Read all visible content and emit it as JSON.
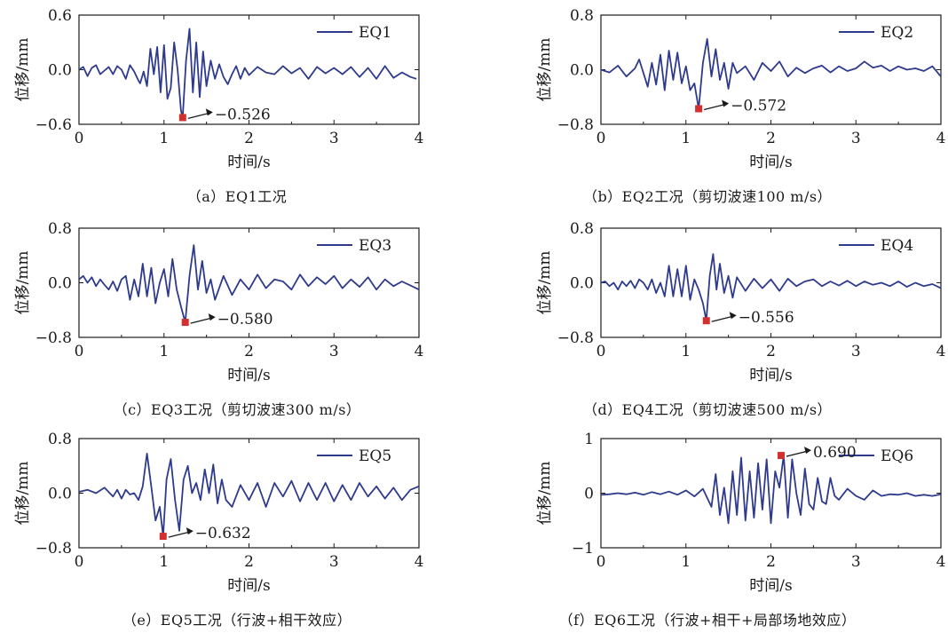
{
  "chart_data": [
    {
      "type": "line",
      "caption": "（a）EQ1工况",
      "series_name": "EQ1",
      "xlabel": "时间/s",
      "ylabel": "位移/mm",
      "xlim": [
        0,
        4
      ],
      "ylim": [
        -0.6,
        0.6
      ],
      "x_ticks": [
        "0",
        "1",
        "2",
        "3",
        "4"
      ],
      "y_ticks": [
        "0.6",
        "0.0",
        "−0.6"
      ],
      "y_tick_values": [
        0.6,
        0.0,
        -0.6
      ],
      "peak": {
        "x": 1.22,
        "y": -0.526,
        "label": "−0.526"
      },
      "x": [
        0.0,
        0.05,
        0.1,
        0.15,
        0.2,
        0.25,
        0.3,
        0.35,
        0.4,
        0.45,
        0.5,
        0.55,
        0.6,
        0.65,
        0.7,
        0.72,
        0.76,
        0.8,
        0.84,
        0.88,
        0.92,
        0.96,
        1.0,
        1.04,
        1.08,
        1.12,
        1.16,
        1.2,
        1.22,
        1.26,
        1.3,
        1.34,
        1.38,
        1.42,
        1.46,
        1.5,
        1.55,
        1.6,
        1.65,
        1.7,
        1.75,
        1.8,
        1.85,
        1.9,
        1.95,
        2.0,
        2.1,
        2.2,
        2.3,
        2.4,
        2.5,
        2.6,
        2.7,
        2.8,
        2.9,
        3.0,
        3.1,
        3.2,
        3.3,
        3.4,
        3.5,
        3.6,
        3.7,
        3.8,
        3.9,
        3.97
      ],
      "y": [
        0.0,
        0.03,
        -0.07,
        0.02,
        0.05,
        -0.05,
        -0.01,
        0.03,
        -0.05,
        0.04,
        0.0,
        -0.1,
        0.05,
        -0.02,
        -0.12,
        -0.15,
        -0.02,
        -0.18,
        0.23,
        -0.05,
        0.25,
        -0.25,
        0.27,
        -0.32,
        -0.2,
        0.3,
        0.0,
        -0.45,
        -0.526,
        0.1,
        0.45,
        -0.25,
        0.3,
        -0.3,
        0.2,
        -0.18,
        0.1,
        -0.1,
        0.06,
        -0.08,
        -0.16,
        -0.05,
        0.04,
        -0.1,
        0.02,
        -0.06,
        0.03,
        -0.03,
        -0.05,
        0.04,
        -0.04,
        0.02,
        -0.1,
        0.03,
        -0.04,
        0.02,
        -0.05,
        0.03,
        -0.08,
        0.02,
        -0.1,
        0.04,
        -0.09,
        -0.03,
        -0.08,
        -0.1
      ]
    },
    {
      "type": "line",
      "caption": "（b）EQ2工况（剪切波速100 m/s）",
      "series_name": "EQ2",
      "xlabel": "时间/s",
      "ylabel": "位移/mm",
      "xlim": [
        0,
        4
      ],
      "ylim": [
        -0.8,
        0.8
      ],
      "x_ticks": [
        "0",
        "1",
        "2",
        "3",
        "4"
      ],
      "y_ticks": [
        "0.8",
        "0.0",
        "−0.8"
      ],
      "y_tick_values": [
        0.8,
        0.0,
        -0.8
      ],
      "peak": {
        "x": 1.15,
        "y": -0.572,
        "label": "−0.572"
      },
      "x": [
        0.0,
        0.1,
        0.2,
        0.3,
        0.4,
        0.45,
        0.5,
        0.55,
        0.6,
        0.65,
        0.7,
        0.75,
        0.8,
        0.85,
        0.9,
        0.95,
        1.0,
        1.05,
        1.1,
        1.15,
        1.2,
        1.25,
        1.3,
        1.35,
        1.4,
        1.45,
        1.5,
        1.55,
        1.6,
        1.7,
        1.8,
        1.9,
        2.0,
        2.1,
        2.2,
        2.3,
        2.4,
        2.5,
        2.6,
        2.7,
        2.8,
        2.9,
        3.0,
        3.1,
        3.2,
        3.3,
        3.4,
        3.5,
        3.6,
        3.7,
        3.8,
        3.9,
        4.0
      ],
      "y": [
        0.0,
        -0.04,
        0.06,
        -0.1,
        0.02,
        0.15,
        -0.05,
        -0.25,
        0.1,
        -0.22,
        0.22,
        -0.3,
        0.28,
        -0.15,
        0.25,
        -0.2,
        0.05,
        -0.3,
        -0.2,
        -0.572,
        0.1,
        0.45,
        -0.1,
        0.3,
        -0.15,
        0.1,
        -0.28,
        0.1,
        -0.05,
        0.05,
        -0.15,
        0.1,
        -0.02,
        0.12,
        -0.1,
        0.03,
        -0.05,
        0.02,
        0.06,
        -0.04,
        0.05,
        -0.02,
        0.02,
        0.12,
        0.03,
        0.06,
        -0.02,
        0.05,
        0.0,
        0.02,
        -0.02,
        0.05,
        -0.1
      ]
    },
    {
      "type": "line",
      "caption": "（c）EQ3工况（剪切波速300 m/s）",
      "series_name": "EQ3",
      "xlabel": "时间/s",
      "ylabel": "位移/mm",
      "xlim": [
        0,
        4
      ],
      "ylim": [
        -0.8,
        0.8
      ],
      "x_ticks": [
        "0",
        "1",
        "2",
        "3",
        "4"
      ],
      "y_ticks": [
        "0.8",
        "0.0",
        "−0.8"
      ],
      "y_tick_values": [
        0.8,
        0.0,
        -0.8
      ],
      "peak": {
        "x": 1.25,
        "y": -0.58,
        "label": "−0.580"
      },
      "x": [
        0.0,
        0.05,
        0.1,
        0.15,
        0.2,
        0.25,
        0.3,
        0.35,
        0.4,
        0.45,
        0.5,
        0.55,
        0.6,
        0.65,
        0.7,
        0.75,
        0.8,
        0.85,
        0.9,
        0.95,
        1.0,
        1.05,
        1.1,
        1.15,
        1.2,
        1.25,
        1.3,
        1.35,
        1.4,
        1.45,
        1.5,
        1.55,
        1.6,
        1.7,
        1.8,
        1.9,
        2.0,
        2.1,
        2.2,
        2.3,
        2.4,
        2.5,
        2.6,
        2.7,
        2.8,
        2.9,
        3.0,
        3.1,
        3.2,
        3.3,
        3.4,
        3.5,
        3.6,
        3.7,
        3.8,
        3.9,
        4.0
      ],
      "y": [
        0.05,
        0.1,
        0.0,
        0.08,
        -0.05,
        0.05,
        -0.03,
        -0.1,
        0.02,
        -0.12,
        0.05,
        0.1,
        -0.25,
        0.05,
        -0.2,
        0.28,
        -0.2,
        0.22,
        -0.3,
        0.0,
        0.2,
        -0.2,
        0.35,
        -0.1,
        -0.35,
        -0.58,
        0.1,
        0.55,
        -0.1,
        0.32,
        -0.15,
        0.05,
        -0.25,
        0.1,
        -0.18,
        0.05,
        -0.1,
        0.12,
        -0.08,
        0.05,
        0.02,
        -0.1,
        0.12,
        -0.05,
        0.08,
        -0.02,
        0.1,
        -0.08,
        0.05,
        -0.06,
        0.08,
        -0.1,
        0.05,
        -0.05,
        0.02,
        -0.04,
        -0.1
      ]
    },
    {
      "type": "line",
      "caption": "（d）EQ4工况（剪切波速500 m/s）",
      "series_name": "EQ4",
      "xlabel": "时间/s",
      "ylabel": "位移/mm",
      "xlim": [
        0,
        4
      ],
      "ylim": [
        -0.8,
        0.8
      ],
      "x_ticks": [
        "0",
        "1",
        "2",
        "3",
        "4"
      ],
      "y_ticks": [
        "0.8",
        "0.0",
        "−0.8"
      ],
      "y_tick_values": [
        0.8,
        0.0,
        -0.8
      ],
      "peak": {
        "x": 1.24,
        "y": -0.556,
        "label": "−0.556"
      },
      "x": [
        0.0,
        0.05,
        0.1,
        0.15,
        0.2,
        0.25,
        0.3,
        0.35,
        0.4,
        0.45,
        0.5,
        0.55,
        0.6,
        0.65,
        0.7,
        0.75,
        0.8,
        0.85,
        0.9,
        0.95,
        1.0,
        1.05,
        1.1,
        1.15,
        1.2,
        1.24,
        1.28,
        1.32,
        1.36,
        1.4,
        1.45,
        1.5,
        1.55,
        1.6,
        1.7,
        1.8,
        1.9,
        2.0,
        2.1,
        2.2,
        2.3,
        2.4,
        2.5,
        2.6,
        2.7,
        2.8,
        2.9,
        3.0,
        3.1,
        3.2,
        3.3,
        3.4,
        3.5,
        3.6,
        3.7,
        3.8,
        3.9,
        4.0
      ],
      "y": [
        0.0,
        0.02,
        -0.05,
        0.0,
        -0.1,
        0.02,
        -0.05,
        0.03,
        -0.08,
        0.05,
        0.0,
        -0.1,
        0.05,
        -0.15,
        0.0,
        -0.2,
        0.25,
        -0.2,
        0.2,
        -0.2,
        0.25,
        -0.25,
        0.05,
        -0.1,
        -0.3,
        -0.556,
        0.1,
        0.42,
        -0.1,
        0.28,
        -0.15,
        0.1,
        -0.22,
        0.08,
        -0.12,
        0.06,
        -0.08,
        0.05,
        -0.12,
        0.06,
        -0.05,
        0.02,
        0.05,
        -0.05,
        0.02,
        -0.04,
        0.03,
        -0.05,
        0.02,
        -0.03,
        0.0,
        -0.05,
        0.02,
        -0.06,
        0.0,
        -0.05,
        -0.02,
        -0.08
      ]
    },
    {
      "type": "line",
      "caption": "（e）EQ5工况（行波+相干效应）",
      "series_name": "EQ5",
      "xlabel": "时间/s",
      "ylabel": "位移/mm",
      "xlim": [
        0,
        4
      ],
      "ylim": [
        -0.8,
        0.8
      ],
      "x_ticks": [
        "0",
        "1",
        "2",
        "3",
        "4"
      ],
      "y_ticks": [
        "0.8",
        "0.0",
        "−0.8"
      ],
      "y_tick_values": [
        0.8,
        0.0,
        -0.8
      ],
      "peak": {
        "x": 0.99,
        "y": -0.632,
        "label": "−0.632"
      },
      "x": [
        0.0,
        0.1,
        0.2,
        0.3,
        0.4,
        0.45,
        0.5,
        0.55,
        0.6,
        0.65,
        0.7,
        0.75,
        0.8,
        0.85,
        0.9,
        0.95,
        0.99,
        1.03,
        1.08,
        1.13,
        1.18,
        1.23,
        1.28,
        1.33,
        1.38,
        1.43,
        1.48,
        1.53,
        1.58,
        1.63,
        1.68,
        1.73,
        1.8,
        1.9,
        2.0,
        2.1,
        2.2,
        2.3,
        2.4,
        2.5,
        2.6,
        2.7,
        2.8,
        2.9,
        3.0,
        3.1,
        3.2,
        3.3,
        3.4,
        3.5,
        3.6,
        3.7,
        3.8,
        3.9,
        4.0
      ],
      "y": [
        0.02,
        0.05,
        0.0,
        0.08,
        -0.05,
        0.05,
        -0.08,
        0.05,
        -0.02,
        0.0,
        -0.1,
        0.1,
        0.58,
        0.1,
        -0.4,
        -0.2,
        -0.632,
        0.2,
        0.5,
        -0.1,
        -0.55,
        0.2,
        0.4,
        0.0,
        0.15,
        -0.1,
        0.35,
        0.0,
        0.42,
        -0.15,
        0.2,
        -0.1,
        -0.2,
        0.12,
        -0.1,
        0.15,
        -0.2,
        0.15,
        -0.05,
        0.18,
        -0.12,
        0.15,
        -0.1,
        0.15,
        -0.12,
        0.12,
        -0.1,
        0.15,
        -0.05,
        0.1,
        -0.08,
        0.08,
        -0.1,
        0.05,
        0.1
      ]
    },
    {
      "type": "line",
      "caption": "（f）EQ6工况（行波+相干+局部场地效应）",
      "series_name": "EQ6",
      "xlabel": "时间/s",
      "ylabel": "位移/mm",
      "xlim": [
        0,
        4
      ],
      "ylim": [
        -1,
        1
      ],
      "x_ticks": [
        "0",
        "1",
        "2",
        "3",
        "4"
      ],
      "y_ticks": [
        "1",
        "0",
        "−1"
      ],
      "y_tick_values": [
        1,
        0,
        -1
      ],
      "peak": {
        "x": 2.12,
        "y": 0.69,
        "label": "0.690"
      },
      "x": [
        0.0,
        0.1,
        0.2,
        0.3,
        0.4,
        0.5,
        0.6,
        0.7,
        0.8,
        0.9,
        1.0,
        1.1,
        1.2,
        1.3,
        1.35,
        1.4,
        1.45,
        1.5,
        1.55,
        1.6,
        1.65,
        1.7,
        1.75,
        1.8,
        1.85,
        1.9,
        1.95,
        2.0,
        2.05,
        2.1,
        2.15,
        2.2,
        2.25,
        2.3,
        2.35,
        2.4,
        2.45,
        2.5,
        2.55,
        2.6,
        2.65,
        2.7,
        2.75,
        2.8,
        2.9,
        3.0,
        3.1,
        3.2,
        3.3,
        3.4,
        3.5,
        3.6,
        3.7,
        3.8,
        3.9,
        4.0
      ],
      "y": [
        -0.03,
        -0.02,
        0.0,
        -0.02,
        0.01,
        -0.03,
        0.02,
        -0.02,
        0.03,
        -0.03,
        0.05,
        -0.06,
        0.08,
        -0.25,
        0.35,
        -0.4,
        0.1,
        -0.55,
        0.4,
        -0.4,
        0.65,
        -0.5,
        0.4,
        -0.45,
        0.55,
        -0.3,
        0.62,
        -0.55,
        0.4,
        0.1,
        0.69,
        -0.45,
        0.62,
        0.0,
        -0.4,
        0.45,
        -0.2,
        -0.3,
        0.28,
        -0.15,
        -0.2,
        0.28,
        -0.05,
        -0.12,
        0.08,
        -0.05,
        -0.12,
        0.05,
        -0.05,
        -0.02,
        -0.03,
        0.0,
        -0.05,
        -0.03,
        -0.05,
        -0.02
      ]
    }
  ]
}
